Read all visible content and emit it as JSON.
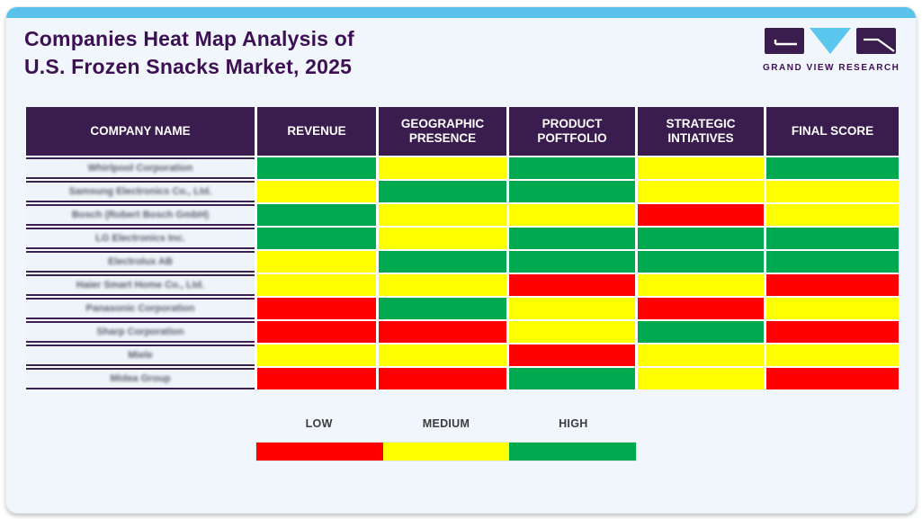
{
  "page": {
    "title_line1": "Companies Heat Map Analysis of",
    "title_line2": "U.S. Frozen Snacks Market, 2025"
  },
  "logo": {
    "label": "GRAND VIEW RESEARCH",
    "purple": "#3a1d4e",
    "blue": "#5bc6ee"
  },
  "colors": {
    "low": "#ff0000",
    "medium": "#ffff00",
    "high": "#00a94f",
    "header_bg": "#3a1d4e",
    "accent_bar": "#5ac2ea",
    "card_bg": "#f0f6fb"
  },
  "table": {
    "columns": [
      "COMPANY NAME",
      "REVENUE",
      "GEOGRAPHIC PRESENCE",
      "PRODUCT POFTFOLIO",
      "STRATEGIC INTIATIVES",
      "FINAL SCORE"
    ],
    "rows": [
      {
        "company": "Whirlpool Corporation",
        "scores": [
          "high",
          "medium",
          "high",
          "medium",
          "high"
        ]
      },
      {
        "company": "Samsung Electronics Co., Ltd.",
        "scores": [
          "medium",
          "high",
          "high",
          "medium",
          "medium"
        ]
      },
      {
        "company": "Bosch (Robert Bosch GmbH)",
        "scores": [
          "high",
          "medium",
          "medium",
          "low",
          "medium"
        ]
      },
      {
        "company": "LG Electronics Inc.",
        "scores": [
          "high",
          "medium",
          "high",
          "high",
          "high"
        ]
      },
      {
        "company": "Electrolux AB",
        "scores": [
          "medium",
          "high",
          "high",
          "high",
          "high"
        ]
      },
      {
        "company": "Haier Smart Home Co., Ltd.",
        "scores": [
          "medium",
          "medium",
          "low",
          "medium",
          "low"
        ]
      },
      {
        "company": "Panasonic Corporation",
        "scores": [
          "low",
          "high",
          "medium",
          "low",
          "medium"
        ]
      },
      {
        "company": "Sharp Corporation",
        "scores": [
          "low",
          "low",
          "medium",
          "high",
          "low"
        ]
      },
      {
        "company": "Miele",
        "scores": [
          "medium",
          "medium",
          "low",
          "medium",
          "medium"
        ]
      },
      {
        "company": "Midea Group",
        "scores": [
          "low",
          "low",
          "high",
          "medium",
          "low"
        ]
      }
    ]
  },
  "legend": {
    "items": [
      {
        "label": "LOW",
        "level": "low"
      },
      {
        "label": "MEDIUM",
        "level": "medium"
      },
      {
        "label": "HIGH",
        "level": "high"
      }
    ]
  },
  "chart_data": {
    "type": "heatmap",
    "title": "Companies Heat Map Analysis of U.S. Frozen Snacks Market, 2025",
    "columns": [
      "REVENUE",
      "GEOGRAPHIC PRESENCE",
      "PRODUCT POFTFOLIO",
      "STRATEGIC INTIATIVES",
      "FINAL SCORE"
    ],
    "rows": [
      "Whirlpool Corporation",
      "Samsung Electronics Co., Ltd.",
      "Bosch (Robert Bosch GmbH)",
      "LG Electronics Inc.",
      "Electrolux AB",
      "Haier Smart Home Co., Ltd.",
      "Panasonic Corporation",
      "Sharp Corporation",
      "Miele",
      "Midea Group"
    ],
    "values": [
      [
        "high",
        "medium",
        "high",
        "medium",
        "high"
      ],
      [
        "medium",
        "high",
        "high",
        "medium",
        "medium"
      ],
      [
        "high",
        "medium",
        "medium",
        "low",
        "medium"
      ],
      [
        "high",
        "medium",
        "high",
        "high",
        "high"
      ],
      [
        "medium",
        "high",
        "high",
        "high",
        "high"
      ],
      [
        "medium",
        "medium",
        "low",
        "medium",
        "low"
      ],
      [
        "low",
        "high",
        "medium",
        "low",
        "medium"
      ],
      [
        "low",
        "low",
        "medium",
        "high",
        "low"
      ],
      [
        "medium",
        "medium",
        "low",
        "medium",
        "medium"
      ],
      [
        "low",
        "low",
        "high",
        "medium",
        "low"
      ]
    ],
    "legend": [
      {
        "label": "LOW",
        "color": "#ff0000"
      },
      {
        "label": "MEDIUM",
        "color": "#ffff00"
      },
      {
        "label": "HIGH",
        "color": "#00a94f"
      }
    ],
    "legend_position": "bottom"
  }
}
